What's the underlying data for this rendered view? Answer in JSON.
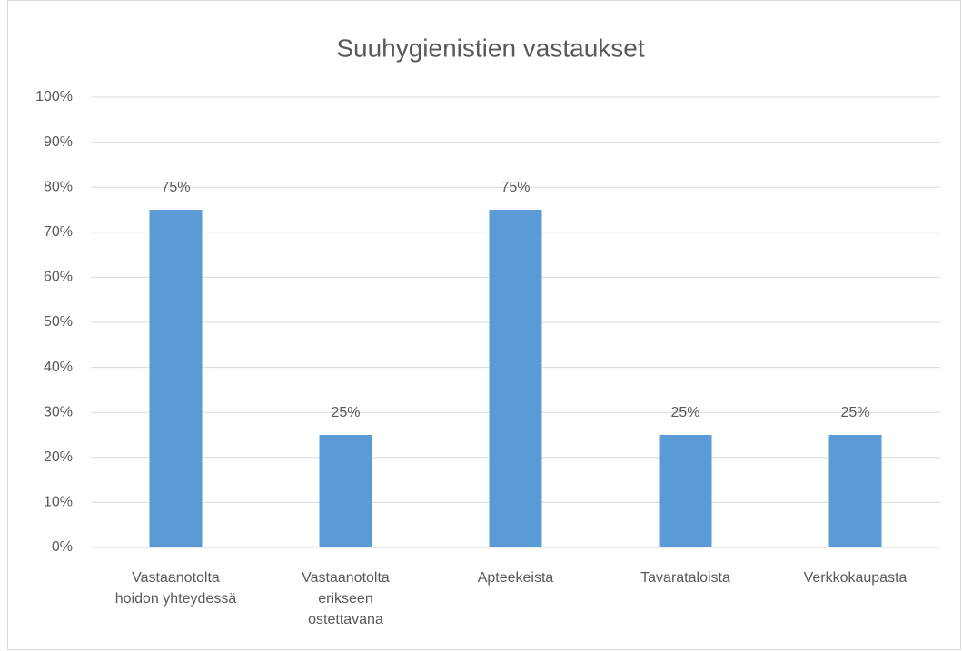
{
  "chart_data": {
    "type": "bar",
    "title": "Suuhygienistien vastaukset",
    "categories": [
      "Vastaanotolta hoidon yhteydessä",
      "Vastaanotolta erikseen ostettavana",
      "Apteekeista",
      "Tavarataloista",
      "Verkkokaupasta"
    ],
    "values": [
      75,
      25,
      75,
      25,
      25
    ],
    "value_labels": [
      "75%",
      "25%",
      "75%",
      "25%",
      "25%"
    ],
    "color": "#5b9bd5",
    "ylim": [
      0,
      100
    ],
    "yticks": [
      {
        "value": 0,
        "label": "0%"
      },
      {
        "value": 10,
        "label": "10%"
      },
      {
        "value": 20,
        "label": "20%"
      },
      {
        "value": 30,
        "label": "30%"
      },
      {
        "value": 40,
        "label": "40%"
      },
      {
        "value": 50,
        "label": "50%"
      },
      {
        "value": 60,
        "label": "60%"
      },
      {
        "value": 70,
        "label": "70%"
      },
      {
        "value": 80,
        "label": "80%"
      },
      {
        "value": 90,
        "label": "90%"
      },
      {
        "value": 100,
        "label": "100%"
      }
    ],
    "grid": true
  }
}
